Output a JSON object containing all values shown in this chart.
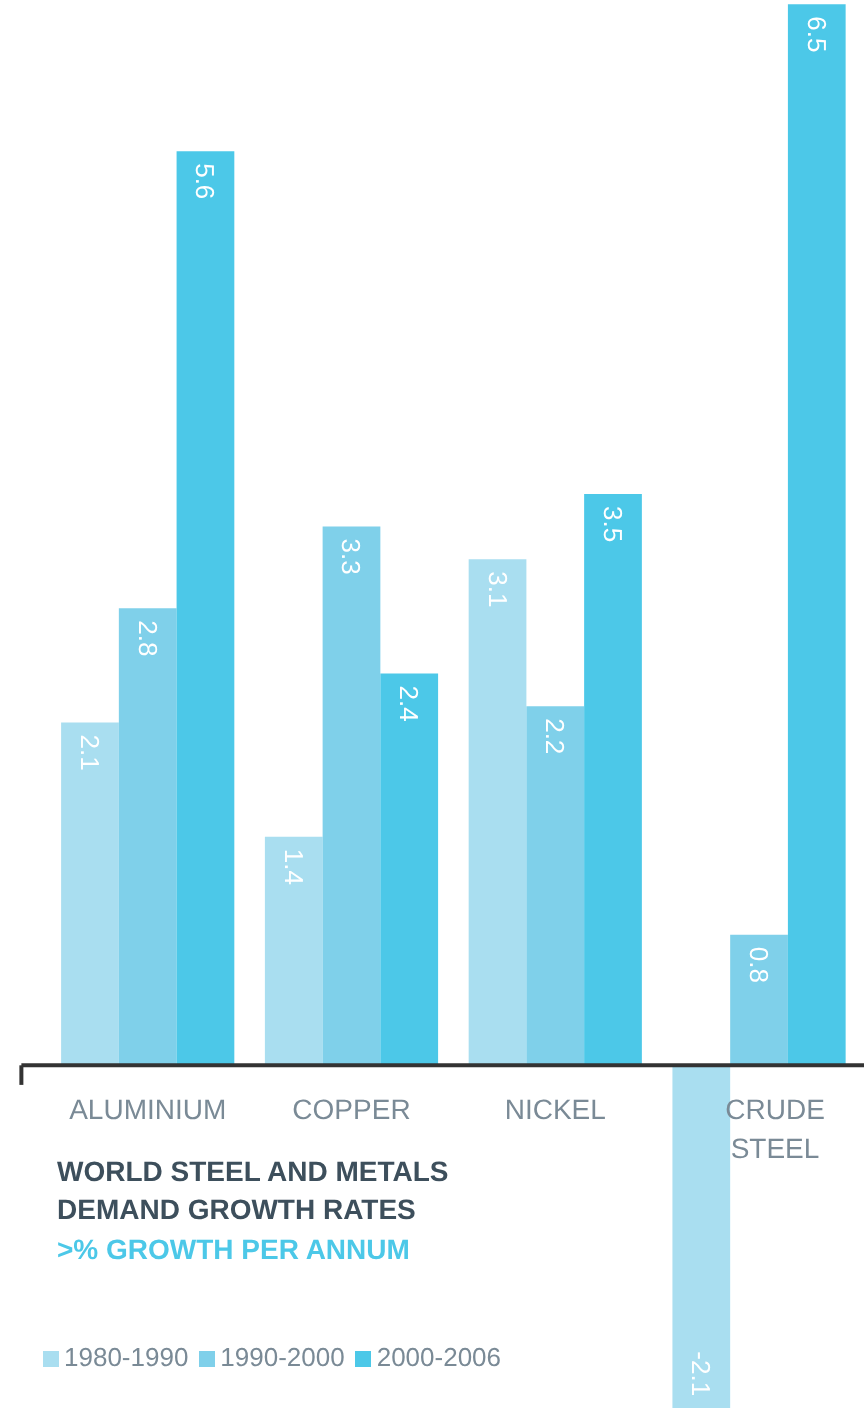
{
  "chart_data": {
    "type": "bar",
    "title": "WORLD STEEL AND METALS DEMAND GROWTH RATES",
    "subtitle": ">% GROWTH PER ANNUM",
    "categories": [
      "ALUMINIUM",
      "COPPER",
      "NICKEL",
      "CRUDE STEEL"
    ],
    "series": [
      {
        "name": "1980-1990",
        "color": "#a9def0",
        "values": [
          2.1,
          1.4,
          3.1,
          -2.1
        ]
      },
      {
        "name": "1990-2000",
        "color": "#7fd0ea",
        "values": [
          2.8,
          3.3,
          2.2,
          0.8
        ]
      },
      {
        "name": "2000-2006",
        "color": "#4cc8e8",
        "values": [
          5.6,
          2.4,
          3.5,
          6.5
        ]
      }
    ],
    "data_labels": true,
    "legend": "bottom",
    "grid": false
  }
}
